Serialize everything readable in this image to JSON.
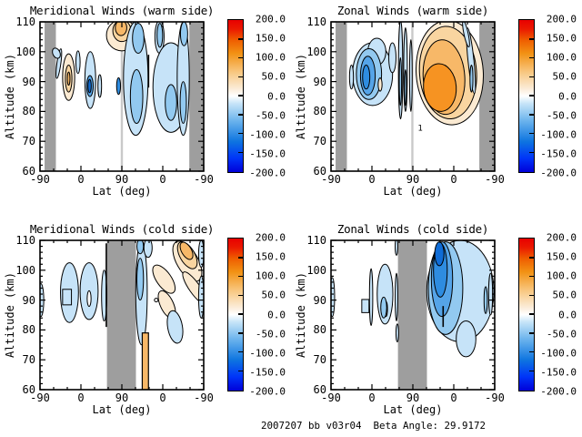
{
  "caption": "2007207 bb v03r04  Beta Angle: 29.9172",
  "colors": {
    "background": "#FFFFFF",
    "axis": "#000000",
    "gray_band": "#9E9E9E",
    "terminator": "#C9C9C9",
    "levels": {
      "m1": "#C6E3F8",
      "m2": "#92C9F0",
      "m3": "#55A4E8",
      "m4": "#2E8CE0",
      "m5": "#0F6CD6",
      "p1": "#FBEAD2",
      "p2": "#F9D5A0",
      "p3": "#F7B868",
      "p4": "#F69322",
      "w": "#FFFFFF"
    },
    "colorbar_stops": [
      [
        0,
        "#0000D8"
      ],
      [
        9,
        "#0034F8"
      ],
      [
        20,
        "#0E74E0"
      ],
      [
        33,
        "#66B0EC"
      ],
      [
        45,
        "#C6E4F8"
      ],
      [
        50,
        "#FFFFFF"
      ],
      [
        55,
        "#FBEBD6"
      ],
      [
        66,
        "#F8C67E"
      ],
      [
        78,
        "#F29214"
      ],
      [
        87,
        "#EF5C00"
      ],
      [
        94,
        "#EB1A00"
      ],
      [
        100,
        "#E80000"
      ]
    ]
  },
  "chart_data": {
    "type": "contour",
    "description": "Four filled-contour panels of wind speed (m/s) vs wrapped latitude and altitude; gray bands mark unsampled latitudes; color scale -200 to 200",
    "colorbar": {
      "min": -200,
      "max": 200,
      "ticks": [
        "200.0",
        "150.0",
        "100.0",
        "50.0",
        "0.0",
        "-50.0",
        "-100.0",
        "-150.0",
        "-200.0"
      ]
    },
    "axes": {
      "xlabel": "Lat (deg)",
      "ylabel": "Altitude (km)",
      "xtick_labels": [
        "-90",
        "0",
        "90",
        "0",
        "-90"
      ],
      "ytick_labels": [
        "110",
        "100",
        "90",
        "80",
        "70",
        "60"
      ],
      "alt_range": [
        60,
        110
      ]
    },
    "plots": [
      {
        "title": "Meridional Winds (warm side)",
        "gray_bands": [
          [
            0.028,
            0.097
          ],
          [
            0.912,
            1.0
          ]
        ],
        "terminator_line": 0.5,
        "blobs": [
          {
            "t": "e",
            "l": "m1",
            "u": 0.115,
            "alt": 96,
            "ru": 0.012,
            "ralt": 5,
            "rot": 8
          },
          {
            "t": "e",
            "l": "m1",
            "u": 0.1,
            "alt": 99.5,
            "ru": 0.022,
            "ralt": 1.8,
            "rot": -25
          },
          {
            "t": "e",
            "l": "p1",
            "u": 0.175,
            "alt": 91.5,
            "ru": 0.037,
            "ralt": 7.8
          },
          {
            "t": "e",
            "l": "p2",
            "u": 0.175,
            "alt": 91,
            "ru": 0.02,
            "ralt": 4.5
          },
          {
            "t": "e",
            "l": "p3",
            "u": 0.175,
            "alt": 91,
            "ru": 0.008,
            "ralt": 2.2
          },
          {
            "t": "e",
            "l": "m1",
            "u": 0.232,
            "alt": 96.5,
            "ru": 0.013,
            "ralt": 3.8
          },
          {
            "t": "e",
            "l": "m1",
            "u": 0.307,
            "alt": 90.5,
            "ru": 0.033,
            "ralt": 9.5
          },
          {
            "t": "e",
            "l": "m3",
            "u": 0.305,
            "alt": 88.5,
            "ru": 0.02,
            "ralt": 3.5
          },
          {
            "t": "e",
            "l": "m5",
            "u": 0.303,
            "alt": 88.5,
            "ru": 0.01,
            "ralt": 2.2
          },
          {
            "t": "e",
            "l": "m1",
            "u": 0.365,
            "alt": 88.5,
            "ru": 0.011,
            "ralt": 3.8
          },
          {
            "t": "e",
            "l": "p1",
            "u": 0.5,
            "alt": 105.5,
            "ru": 0.094,
            "ralt": 5.2
          },
          {
            "t": "e",
            "l": "p2",
            "u": 0.5,
            "alt": 107,
            "ru": 0.055,
            "ralt": 3.6
          },
          {
            "t": "e",
            "l": "p3",
            "u": 0.495,
            "alt": 108,
            "ru": 0.035,
            "ralt": 2.6
          },
          {
            "t": "e",
            "l": "m4",
            "u": 0.48,
            "alt": 88.5,
            "ru": 0.012,
            "ralt": 2.8
          },
          {
            "t": "e",
            "l": "m1",
            "u": 0.585,
            "alt": 91,
            "ru": 0.075,
            "ralt": 19
          },
          {
            "t": "e",
            "l": "m2",
            "u": 0.59,
            "alt": 85,
            "ru": 0.038,
            "ralt": 9
          },
          {
            "t": "e",
            "l": "m2",
            "u": 0.6,
            "alt": 104.5,
            "ru": 0.035,
            "ralt": 5
          },
          {
            "t": "e",
            "l": "m1",
            "u": 0.73,
            "alt": 105,
            "ru": 0.028,
            "ralt": 5.5
          },
          {
            "t": "e",
            "l": "m2",
            "u": 0.732,
            "alt": 105.5,
            "ru": 0.017,
            "ralt": 4
          },
          {
            "t": "e",
            "l": "m1",
            "u": 0.8,
            "alt": 88,
            "ru": 0.11,
            "ralt": 15
          },
          {
            "t": "e",
            "l": "m2",
            "u": 0.8,
            "alt": 83,
            "ru": 0.035,
            "ralt": 6
          },
          {
            "t": "e",
            "l": "m1",
            "u": 0.875,
            "alt": 91,
            "ru": 0.037,
            "ralt": 19
          },
          {
            "t": "e",
            "l": "m2",
            "u": 0.875,
            "alt": 83,
            "ru": 0.019,
            "ralt": 7
          },
          {
            "t": "e",
            "l": "m2",
            "u": 0.88,
            "alt": 106,
            "ru": 0.022,
            "ralt": 4
          },
          {
            "t": "v",
            "u": 0.663,
            "alt": 93.5,
            "ralt": 5.5
          }
        ],
        "labels": []
      },
      {
        "title": "Zonal Winds (warm side)",
        "gray_bands": [
          [
            0.028,
            0.097
          ],
          [
            0.906,
            1.0
          ]
        ],
        "terminator_line": 0.497,
        "blobs": [
          {
            "t": "e",
            "l": "m1",
            "u": 0.254,
            "alt": 92.5,
            "ru": 0.122,
            "ralt": 10.5
          },
          {
            "t": "e",
            "l": "m1",
            "u": 0.28,
            "alt": 100,
            "ru": 0.055,
            "ralt": 4.5
          },
          {
            "t": "e",
            "l": "m2",
            "u": 0.232,
            "alt": 92.5,
            "ru": 0.077,
            "ralt": 8.5
          },
          {
            "t": "e",
            "l": "m3",
            "u": 0.225,
            "alt": 92,
            "ru": 0.045,
            "ralt": 6.5
          },
          {
            "t": "e",
            "l": "m4",
            "u": 0.215,
            "alt": 91.5,
            "ru": 0.022,
            "ralt": 4
          },
          {
            "t": "e",
            "l": "m1",
            "u": 0.125,
            "alt": 91.5,
            "ru": 0.012,
            "ralt": 4
          },
          {
            "t": "e",
            "l": "p1",
            "u": 0.3,
            "alt": 89,
            "ru": 0.012,
            "ralt": 2.2
          },
          {
            "t": "e",
            "l": "m1",
            "u": 0.375,
            "alt": 98,
            "ru": 0.022,
            "ralt": 5
          },
          {
            "t": "e",
            "l": "m1",
            "u": 0.425,
            "alt": 94,
            "ru": 0.013,
            "ralt": 16.5
          },
          {
            "t": "e",
            "l": "m2",
            "u": 0.424,
            "alt": 90,
            "ru": 0.007,
            "ralt": 8
          },
          {
            "t": "e",
            "l": "m1",
            "u": 0.455,
            "alt": 94,
            "ru": 0.011,
            "ralt": 14
          },
          {
            "t": "e",
            "l": "m2",
            "u": 0.455,
            "alt": 88,
            "ru": 0.006,
            "ralt": 6
          },
          {
            "t": "e",
            "l": "m1",
            "u": 0.488,
            "alt": 92,
            "ru": 0.008,
            "ralt": 12
          },
          {
            "t": "e",
            "l": "p1",
            "u": 0.725,
            "alt": 93,
            "ru": 0.205,
            "ralt": 17.5,
            "rot": -4
          },
          {
            "t": "e",
            "l": "p2",
            "u": 0.715,
            "alt": 93,
            "ru": 0.174,
            "ralt": 15.5,
            "rot": -4
          },
          {
            "t": "e",
            "l": "p3",
            "u": 0.69,
            "alt": 91.5,
            "ru": 0.127,
            "ralt": 12.5,
            "rot": -4
          },
          {
            "t": "e",
            "l": "p4",
            "u": 0.665,
            "alt": 88,
            "ru": 0.1,
            "ralt": 8,
            "rot": -4
          },
          {
            "t": "e",
            "l": "m1",
            "u": 0.855,
            "alt": 97,
            "ru": 0.018,
            "ralt": 11,
            "rot": -6
          },
          {
            "t": "e",
            "l": "m2",
            "u": 0.858,
            "alt": 91,
            "ru": 0.009,
            "ralt": 4.5
          },
          {
            "t": "e",
            "l": "m1",
            "u": 0.825,
            "alt": 106,
            "ru": 0.013,
            "ralt": 4.5,
            "rot": -12
          }
        ],
        "labels": [
          {
            "text": "1",
            "u": 0.545,
            "alt": 73.5
          }
        ]
      },
      {
        "title": "Meridional Winds (cold side)",
        "gray_bands": [
          [
            0.409,
            0.586
          ]
        ],
        "terminator_line": null,
        "blobs": [
          {
            "t": "e",
            "l": "m1",
            "u": 0.005,
            "alt": 90,
            "ru": 0.018,
            "ralt": 5.5
          },
          {
            "t": "e",
            "l": "m1",
            "u": 0.18,
            "alt": 92.5,
            "ru": 0.055,
            "ralt": 10
          },
          {
            "t": "r",
            "l": "m1",
            "u": 0.165,
            "alt": 91,
            "ru": 0.027,
            "ralt": 2.6
          },
          {
            "t": "e",
            "l": "m1",
            "u": 0.3,
            "alt": 93,
            "ru": 0.055,
            "ralt": 9.5
          },
          {
            "t": "e",
            "l": "w",
            "u": 0.3,
            "alt": 90.5,
            "ru": 0.012,
            "ralt": 2.6
          },
          {
            "t": "e",
            "l": "m1",
            "u": 0.392,
            "alt": 91.5,
            "ru": 0.016,
            "ralt": 8.5
          },
          {
            "t": "v",
            "u": 0.405,
            "alt": 95,
            "ralt": 14
          },
          {
            "t": "e",
            "l": "m1",
            "u": 0.62,
            "alt": 92.5,
            "ru": 0.035,
            "ralt": 17.5
          },
          {
            "t": "e",
            "l": "m2",
            "u": 0.612,
            "alt": 97,
            "ru": 0.02,
            "ralt": 7
          },
          {
            "t": "e",
            "l": "m2",
            "u": 0.612,
            "alt": 108,
            "ru": 0.02,
            "ralt": 2.5
          },
          {
            "t": "e",
            "l": "m1",
            "u": 0.66,
            "alt": 107.5,
            "ru": 0.025,
            "ralt": 3.2
          },
          {
            "t": "e",
            "l": "p1",
            "u": 0.757,
            "alt": 97,
            "ru": 0.045,
            "ralt": 5.5,
            "rot": -35
          },
          {
            "t": "e",
            "l": "p1",
            "u": 0.775,
            "alt": 88.5,
            "ru": 0.04,
            "ralt": 5,
            "rot": -25
          },
          {
            "t": "e",
            "l": "p1",
            "u": 0.9,
            "alt": 103,
            "ru": 0.065,
            "ralt": 7.5,
            "rot": -30
          },
          {
            "t": "e",
            "l": "p2",
            "u": 0.9,
            "alt": 105,
            "ru": 0.045,
            "ralt": 5,
            "rot": -30
          },
          {
            "t": "e",
            "l": "p3",
            "u": 0.895,
            "alt": 106.5,
            "ru": 0.03,
            "ralt": 3.2,
            "rot": -30
          },
          {
            "t": "e",
            "l": "p1",
            "u": 0.945,
            "alt": 94,
            "ru": 0.033,
            "ralt": 6.5,
            "rot": -35
          },
          {
            "t": "e",
            "l": "m1",
            "u": 0.825,
            "alt": 81,
            "ru": 0.045,
            "ralt": 5.5,
            "rot": -10
          },
          {
            "t": "e",
            "l": "m1",
            "u": 0.985,
            "alt": 91,
            "ru": 0.016,
            "ralt": 7
          },
          {
            "t": "e",
            "l": "m1",
            "u": 0.985,
            "alt": 105.5,
            "ru": 0.016,
            "ralt": 4.5
          },
          {
            "t": "c",
            "u": 0.71,
            "alt": 90,
            "r": 2
          },
          {
            "t": "s",
            "l": "p3",
            "u": 0.6436,
            "ru": 0.019,
            "alt0": 60,
            "alt1": 79
          }
        ],
        "labels": []
      },
      {
        "title": "Zonal Winds (cold side)",
        "gray_bands": [
          [
            0.409,
            0.586
          ]
        ],
        "terminator_line": null,
        "blobs": [
          {
            "t": "e",
            "l": "m1",
            "u": 0.008,
            "alt": 91,
            "ru": 0.014,
            "ralt": 6.5
          },
          {
            "t": "r",
            "l": "m1",
            "u": 0.21,
            "alt": 88,
            "ru": 0.022,
            "ralt": 2.2
          },
          {
            "t": "e",
            "l": "m1",
            "u": 0.245,
            "alt": 91,
            "ru": 0.01,
            "ralt": 9.5
          },
          {
            "t": "e",
            "l": "m1",
            "u": 0.33,
            "alt": 92,
            "ru": 0.048,
            "ralt": 10
          },
          {
            "t": "e",
            "l": "w",
            "u": 0.335,
            "alt": 87,
            "ru": 0.01,
            "ralt": 2.5
          },
          {
            "t": "e",
            "l": "m2",
            "u": 0.322,
            "alt": 87.5,
            "ru": 0.018,
            "ralt": 3.5
          },
          {
            "t": "e",
            "l": "m1",
            "u": 0.4,
            "alt": 91,
            "ru": 0.008,
            "ralt": 8
          },
          {
            "t": "e",
            "l": "m1",
            "u": 0.4,
            "alt": 108,
            "ru": 0.008,
            "ralt": 3
          },
          {
            "t": "e",
            "l": "m1",
            "u": 0.405,
            "alt": 79,
            "ru": 0.008,
            "ralt": 3
          },
          {
            "t": "e",
            "l": "m1",
            "u": 0.79,
            "alt": 93,
            "ru": 0.205,
            "ralt": 17
          },
          {
            "t": "e",
            "l": "m1",
            "u": 0.825,
            "alt": 77,
            "ru": 0.06,
            "ralt": 6
          },
          {
            "t": "e",
            "l": "m2",
            "u": 0.7,
            "alt": 94,
            "ru": 0.105,
            "ralt": 15.5
          },
          {
            "t": "e",
            "l": "m3",
            "u": 0.678,
            "alt": 97,
            "ru": 0.065,
            "ralt": 12.5
          },
          {
            "t": "e",
            "l": "m4",
            "u": 0.668,
            "alt": 100,
            "ru": 0.042,
            "ralt": 9
          },
          {
            "t": "e",
            "l": "m5",
            "u": 0.662,
            "alt": 105.5,
            "ru": 0.028,
            "ralt": 4
          },
          {
            "t": "v",
            "u": 0.685,
            "alt": 84.5,
            "ralt": 3.5
          },
          {
            "t": "e",
            "l": "m2",
            "u": 0.945,
            "alt": 90,
            "ru": 0.01,
            "ralt": 4.5
          },
          {
            "t": "e",
            "l": "m1",
            "u": 0.975,
            "alt": 92,
            "ru": 0.012,
            "ralt": 7
          }
        ],
        "labels": []
      }
    ]
  }
}
